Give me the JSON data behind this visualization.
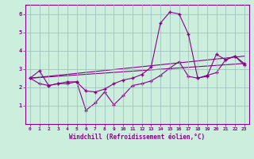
{
  "xlabel": "Windchill (Refroidissement éolien,°C)",
  "bg_color": "#cceedd",
  "line_color": "#880088",
  "xlim": [
    -0.5,
    23.5
  ],
  "ylim": [
    0,
    6.5
  ],
  "yticks": [
    1,
    2,
    3,
    4,
    5,
    6
  ],
  "xticks": [
    0,
    1,
    2,
    3,
    4,
    5,
    6,
    7,
    8,
    9,
    10,
    11,
    12,
    13,
    14,
    15,
    16,
    17,
    18,
    19,
    20,
    21,
    22,
    23
  ],
  "line1_x": [
    0,
    1,
    2,
    3,
    4,
    5,
    6,
    7,
    8,
    9,
    10,
    11,
    12,
    13,
    14,
    15,
    16,
    17,
    18,
    19,
    20,
    21,
    22,
    23
  ],
  "line1_y": [
    2.5,
    2.9,
    2.1,
    2.2,
    2.3,
    2.3,
    1.8,
    1.75,
    1.9,
    2.2,
    2.4,
    2.5,
    2.7,
    3.1,
    5.5,
    6.1,
    6.0,
    4.9,
    2.5,
    2.6,
    3.8,
    3.5,
    3.7,
    3.3
  ],
  "line2_x": [
    0,
    1,
    2,
    3,
    4,
    5,
    6,
    7,
    8,
    9,
    10,
    11,
    12,
    13,
    14,
    15,
    16,
    17,
    18,
    19,
    20,
    21,
    22,
    23
  ],
  "line2_y": [
    2.5,
    2.2,
    2.1,
    2.2,
    2.2,
    2.3,
    0.75,
    1.15,
    1.75,
    1.05,
    1.55,
    2.1,
    2.2,
    2.35,
    2.65,
    3.05,
    3.4,
    2.6,
    2.5,
    2.65,
    2.8,
    3.5,
    3.7,
    3.2
  ],
  "line3_x": [
    0,
    23
  ],
  "line3_y": [
    2.5,
    3.7
  ],
  "line4_x": [
    0,
    23
  ],
  "line4_y": [
    2.5,
    3.3
  ]
}
